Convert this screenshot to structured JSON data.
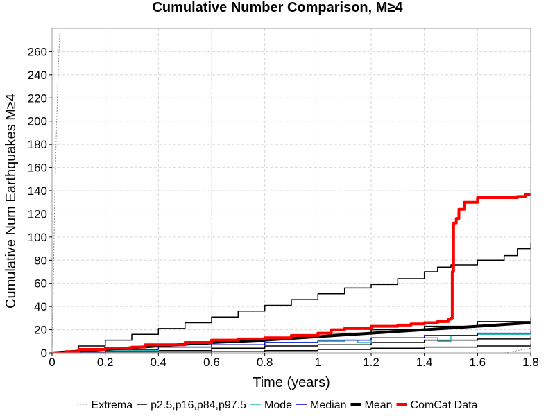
{
  "chart_data": {
    "type": "line",
    "title": "Cumulative Number Comparison, M≥4",
    "xlabel": "Time (years)",
    "ylabel": "Cumulative Num Earthquakes M≥4",
    "xlim": [
      0,
      1.8
    ],
    "ylim": [
      0,
      280
    ],
    "x_ticks": [
      "0",
      "0.2",
      "0.4",
      "0.6",
      "0.8",
      "1",
      "1.2",
      "1.4",
      "1.6",
      "1.8"
    ],
    "y_ticks": [
      "0",
      "20",
      "40",
      "60",
      "80",
      "100",
      "120",
      "140",
      "160",
      "180",
      "200",
      "220",
      "240",
      "260"
    ],
    "grid": true,
    "legend_position": "bottom",
    "legend": [
      "Extrema",
      "p2.5,p16,p84,p97.5",
      "Mode",
      "Median",
      "Mean",
      "ComCat Data"
    ],
    "series": [
      {
        "name": "Extrema",
        "color": "#8c8c8c",
        "dash": "2 2",
        "width": 1,
        "x": [
          0,
          0.005,
          0.01,
          0.015,
          0.02,
          0.025,
          0.03
        ],
        "y": [
          0,
          60,
          130,
          180,
          220,
          255,
          280
        ]
      },
      {
        "name": "Extrema",
        "color": "#8c8c8c",
        "dash": "2 2",
        "width": 1,
        "x": [
          0,
          1.5,
          1.7,
          1.75,
          1.8
        ],
        "y": [
          0,
          0,
          0,
          2,
          4
        ]
      },
      {
        "name": "p2.5,p16,p84,p97.5",
        "color": "#000000",
        "width": 1.5,
        "step": true,
        "x": [
          0,
          0.1,
          0.2,
          0.3,
          0.4,
          0.5,
          0.6,
          0.7,
          0.8,
          0.9,
          1.0,
          1.1,
          1.2,
          1.3,
          1.4,
          1.45,
          1.5,
          1.6,
          1.7,
          1.75,
          1.8
        ],
        "y": [
          0,
          6,
          11,
          16,
          21,
          26,
          31,
          36,
          41,
          46,
          51,
          56,
          59,
          64,
          70,
          74,
          76,
          80,
          84,
          90,
          95
        ]
      },
      {
        "name": "p2.5,p16,p84,p97.5",
        "color": "#000000",
        "width": 1.5,
        "step": true,
        "x": [
          0,
          0.2,
          0.4,
          0.6,
          0.8,
          1.0,
          1.2,
          1.4,
          1.6,
          1.8
        ],
        "y": [
          0,
          3,
          7,
          10,
          13,
          17,
          20,
          23,
          27,
          31
        ]
      },
      {
        "name": "p2.5,p16,p84,p97.5",
        "color": "#000000",
        "width": 1.5,
        "step": true,
        "x": [
          0,
          0.2,
          0.4,
          0.6,
          0.8,
          1.0,
          1.2,
          1.4,
          1.6,
          1.8
        ],
        "y": [
          0,
          1,
          2,
          4,
          6,
          7,
          9,
          11,
          12,
          14
        ]
      },
      {
        "name": "p2.5,p16,p84,p97.5",
        "color": "#000000",
        "width": 1.5,
        "step": true,
        "x": [
          0,
          0.2,
          0.4,
          0.6,
          0.8,
          1.0,
          1.2,
          1.4,
          1.6,
          1.8
        ],
        "y": [
          0,
          0,
          0,
          1,
          2,
          3,
          4,
          5,
          6,
          8
        ]
      },
      {
        "name": "Mode",
        "color": "#2ab7b7",
        "width": 1.5,
        "step": true,
        "x": [
          0,
          0.2,
          0.4,
          0.6,
          0.8,
          1.0,
          1.1,
          1.15,
          1.2,
          1.4,
          1.45,
          1.5,
          1.6,
          1.8
        ],
        "y": [
          0,
          2,
          5,
          7,
          9,
          10,
          11,
          9,
          13,
          13,
          10,
          15,
          16,
          17
        ]
      },
      {
        "name": "Median",
        "color": "#0000cc",
        "width": 1.5,
        "step": true,
        "x": [
          0,
          0.2,
          0.4,
          0.6,
          0.8,
          1.0,
          1.2,
          1.4,
          1.6,
          1.8
        ],
        "y": [
          0,
          3,
          5,
          7,
          9,
          11,
          13,
          15,
          17,
          19
        ]
      },
      {
        "name": "Mean",
        "color": "#000000",
        "width": 4,
        "x": [
          0,
          0.2,
          0.4,
          0.6,
          0.8,
          1.0,
          1.2,
          1.4,
          1.6,
          1.8
        ],
        "y": [
          0,
          3,
          6,
          9,
          11,
          14,
          17,
          20,
          23,
          26
        ]
      },
      {
        "name": "ComCat Data",
        "color": "#ff0000",
        "width": 4,
        "step": true,
        "x": [
          0,
          0.05,
          0.1,
          0.2,
          0.3,
          0.35,
          0.5,
          0.6,
          0.7,
          0.8,
          0.9,
          1.0,
          1.05,
          1.1,
          1.2,
          1.3,
          1.35,
          1.4,
          1.45,
          1.49,
          1.5,
          1.505,
          1.51,
          1.52,
          1.53,
          1.55,
          1.6,
          1.7,
          1.75,
          1.78,
          1.8
        ],
        "y": [
          0,
          1,
          3,
          4,
          5,
          7,
          9,
          11,
          12,
          13,
          15,
          17,
          20,
          21,
          23,
          24,
          25,
          26,
          27,
          29,
          30,
          70,
          112,
          116,
          124,
          130,
          134,
          134,
          135,
          137,
          137
        ]
      }
    ]
  },
  "legend_items": [
    {
      "label": "Extrema",
      "color": "#8c8c8c",
      "dash": "2 2",
      "width": 1
    },
    {
      "label": "p2.5,p16,p84,p97.5",
      "color": "#000000",
      "width": 1.5
    },
    {
      "label": "Mode",
      "color": "#2ab7b7",
      "width": 1.5
    },
    {
      "label": "Median",
      "color": "#0000cc",
      "width": 1.5
    },
    {
      "label": "Mean",
      "color": "#000000",
      "width": 4
    },
    {
      "label": "ComCat Data",
      "color": "#ff0000",
      "width": 4
    }
  ]
}
